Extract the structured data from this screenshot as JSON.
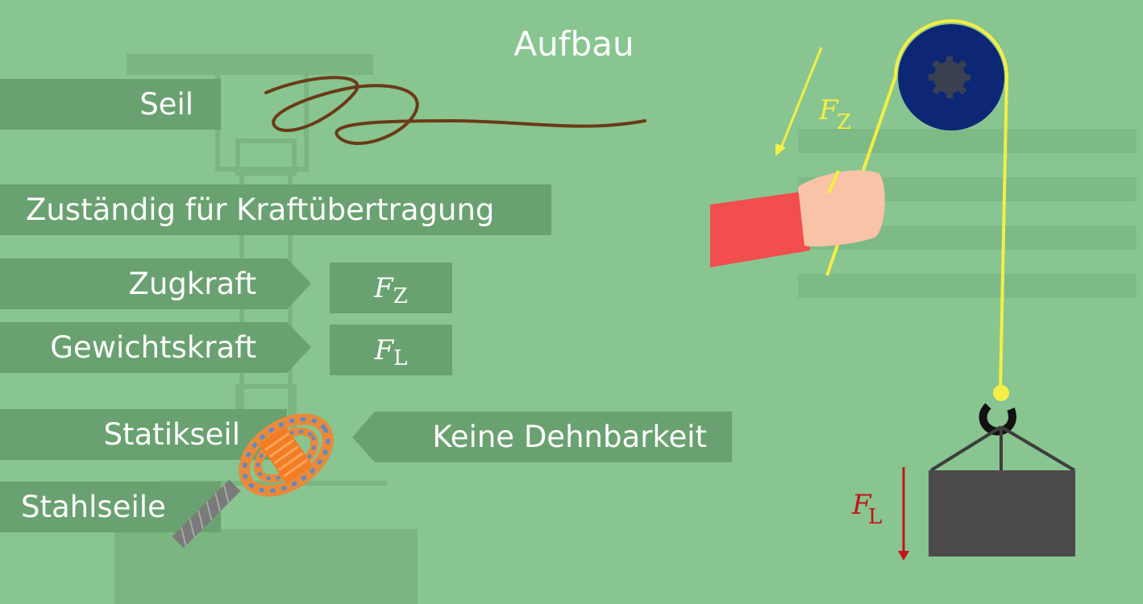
{
  "title": "Aufbau",
  "labels": {
    "seil": "Seil",
    "zustaendig": "Zuständig für Kraftübertragung",
    "zugkraft": "Zugkraft",
    "gewichtskraft": "Gewichtskraft",
    "statikseil": "Statikseil",
    "stahlseile": "Stahlseile",
    "keine_dehnbarkeit": "Keine Dehnbarkeit"
  },
  "symbols": {
    "zug": {
      "main": "F",
      "sub": "Z"
    },
    "last": {
      "main": "F",
      "sub": "L"
    }
  },
  "diagram": {
    "pull_force": {
      "main": "F",
      "sub": "Z"
    },
    "load_force": {
      "main": "F",
      "sub": "L"
    }
  },
  "colors": {
    "background": "#88c590",
    "box": "#6aa170",
    "rope_yellow": "#f5ee45",
    "pulley": "#0d2775",
    "load": "#4b494b",
    "load_arrow": "#c4131a",
    "sleeve": "#f24e4e",
    "hand": "#f9c3a7",
    "brown_rope": "#6b3a17"
  }
}
